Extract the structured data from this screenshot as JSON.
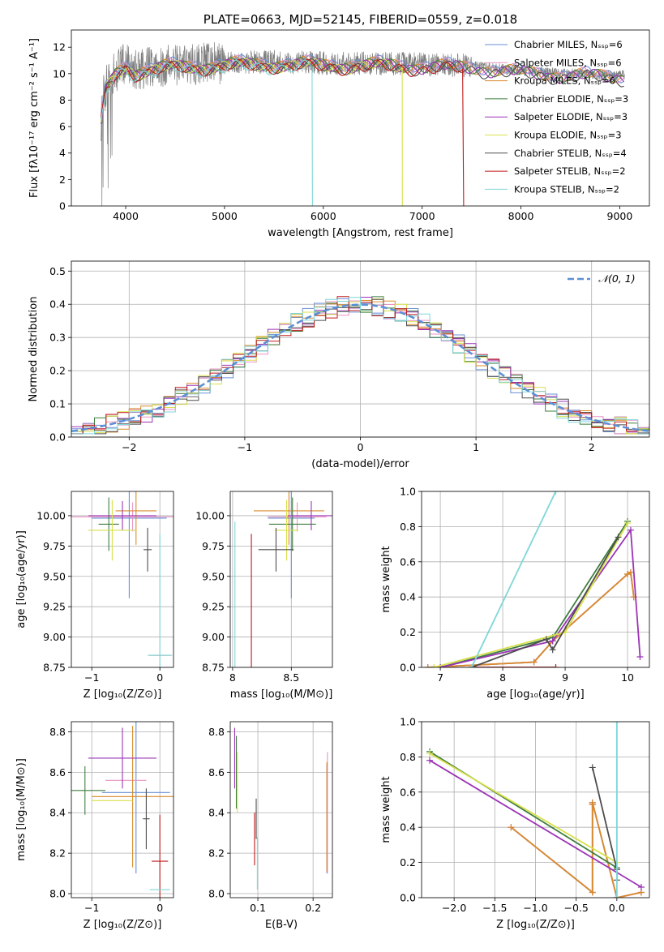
{
  "colors": {
    "Chabrier MILES": "#6a8fd6",
    "Salpeter MILES": "#e893c4",
    "Kroupa MILES": "#d98a2a",
    "Chabrier ELODIE": "#3f7d3f",
    "Salpeter ELODIE": "#9b34b5",
    "Kroupa ELODIE": "#d7e04a",
    "Chabrier STELIB": "#4d4d4d",
    "Salpeter STELIB": "#c01a1a",
    "Kroupa STELIB": "#7fd6d8",
    "data": "#808080",
    "gauss": "#5b8fd6"
  },
  "chart_data": [
    {
      "id": "spectrum",
      "type": "line",
      "title": "PLATE=0663, MJD=52145, FIBERID=0559, z=0.018",
      "xlabel": "wavelength [Angstrom, rest frame]",
      "ylabel": "Flux [fλ10⁻¹⁷ erg cm⁻² s⁻¹ A⁻¹]",
      "xlim": [
        3450,
        9300
      ],
      "ylim": [
        0,
        13.3
      ],
      "xticks": [
        4000,
        5000,
        6000,
        7000,
        8000,
        9000
      ],
      "yticks": [
        0,
        2,
        4,
        6,
        8,
        10,
        12
      ],
      "legend": [
        "Chabrier MILES, Nₛₛₚ=6",
        "Salpeter MILES, Nₛₛₚ=6",
        "Kroupa MILES, Nₛₛₚ=6",
        "Chabrier ELODIE, Nₛₛₚ=3",
        "Salpeter ELODIE, Nₛₛₚ=3",
        "Kroupa ELODIE, Nₛₛₚ=3",
        "Chabrier STELIB, Nₛₛₚ=4",
        "Salpeter STELIB, Nₛₛₚ=2",
        "Kroupa STELIB, Nₛₛₚ=2"
      ],
      "legend_loc": "upper-right",
      "data_range": [
        3750,
        9050
      ],
      "continuum": [
        [
          3750,
          6.5
        ],
        [
          3800,
          9.0
        ],
        [
          3900,
          10.2
        ],
        [
          4000,
          10.8
        ],
        [
          4100,
          10.3
        ],
        [
          4300,
          10.5
        ],
        [
          4500,
          10.7
        ],
        [
          5000,
          10.8
        ],
        [
          5500,
          10.9
        ],
        [
          6000,
          10.8
        ],
        [
          6500,
          10.8
        ],
        [
          7000,
          10.7
        ],
        [
          7500,
          10.6
        ],
        [
          8000,
          10.2
        ],
        [
          8500,
          10.0
        ],
        [
          9000,
          9.9
        ]
      ],
      "model_cutoffs": [
        {
          "series": "Kroupa STELIB",
          "x": 5890
        },
        {
          "series": "Kroupa ELODIE",
          "x": 6800
        },
        {
          "series": "Salpeter STELIB",
          "x": 7420
        }
      ]
    },
    {
      "id": "residuals",
      "type": "histogram",
      "xlabel": "(data-model)/error",
      "ylabel": "Normed distribution",
      "xlim": [
        -2.5,
        2.5
      ],
      "ylim": [
        0,
        0.53
      ],
      "xticks": [
        -2,
        -1,
        0,
        1,
        2
      ],
      "yticks": [
        0.0,
        0.1,
        0.2,
        0.3,
        0.4,
        0.5
      ],
      "legend": [
        "𝒩(0, 1)"
      ],
      "legend_loc": "upper-right",
      "bin_width": 0.1
    },
    {
      "id": "age-vs-Z",
      "type": "errorbar",
      "xlabel": "Z [log₁₀(Z/Z⊙)]",
      "ylabel": "age  [log₁₀(age/yr)]",
      "xlim": [
        -1.3,
        0.2
      ],
      "ylim": [
        8.75,
        10.2
      ],
      "xticks": [
        -1,
        0
      ],
      "yticks": [
        8.75,
        9.0,
        9.25,
        9.5,
        9.75,
        10.0
      ],
      "ytick_labels": [
        "8.75",
        "9.00",
        "9.25",
        "9.50",
        "9.75",
        "10.00"
      ],
      "points": [
        {
          "series": "Chabrier MILES",
          "x": -0.45,
          "xerr": 0.55,
          "y": 9.98,
          "yerr": 0.66
        },
        {
          "series": "Salpeter MILES",
          "x": -0.4,
          "xerr": 0.9,
          "y": 9.99,
          "yerr": 0.12
        },
        {
          "series": "Kroupa MILES",
          "x": -0.35,
          "xerr": 0.3,
          "y": 10.04,
          "yerr": 0.28
        },
        {
          "series": "Chabrier ELODIE",
          "x": -0.75,
          "xerr": 0.15,
          "y": 9.93,
          "yerr": 0.22
        },
        {
          "series": "Salpeter ELODIE",
          "x": -0.55,
          "xerr": 0.5,
          "y": 10.0,
          "yerr": 0.12
        },
        {
          "series": "Kroupa ELODIE",
          "x": -0.7,
          "xerr": 0.35,
          "y": 9.88,
          "yerr": 0.25
        },
        {
          "series": "Chabrier STELIB",
          "x": -0.18,
          "xerr": 0.06,
          "y": 9.72,
          "yerr": 0.18
        },
        {
          "series": "Salpeter STELIB",
          "x": 0.0,
          "xerr": 0.15,
          "y": 8.85,
          "yerr": 0.0
        },
        {
          "series": "Kroupa STELIB",
          "x": 0.0,
          "xerr": 0.18,
          "y": 8.85,
          "yerr": 1.0
        }
      ]
    },
    {
      "id": "age-vs-mass",
      "type": "errorbar",
      "xlabel": "mass [log₁₀(M/M⊙)]",
      "ylabel": "",
      "xlim": [
        7.98,
        8.85
      ],
      "ylim": [
        8.75,
        10.2
      ],
      "xticks": [
        8.0,
        8.5
      ],
      "yticks": [
        8.75,
        9.0,
        9.25,
        9.5,
        9.75,
        10.0
      ],
      "ytick_labels": [
        "8.75",
        "9.00",
        "9.25",
        "9.50",
        "9.75",
        "10.00"
      ],
      "points": [
        {
          "series": "Chabrier MILES",
          "x": 8.5,
          "xerr": 0.2,
          "y": 9.98,
          "yerr": 0.66
        },
        {
          "series": "Salpeter MILES",
          "x": 8.55,
          "xerr": 0.25,
          "y": 9.99,
          "yerr": 0.12
        },
        {
          "series": "Kroupa MILES",
          "x": 8.48,
          "xerr": 0.3,
          "y": 10.04,
          "yerr": 0.28
        },
        {
          "series": "Chabrier ELODIE",
          "x": 8.51,
          "xerr": 0.2,
          "y": 9.93,
          "yerr": 0.22
        },
        {
          "series": "Salpeter ELODIE",
          "x": 8.67,
          "xerr": 0.2,
          "y": 10.0,
          "yerr": 0.12
        },
        {
          "series": "Kroupa ELODIE",
          "x": 8.46,
          "xerr": 0.1,
          "y": 9.88,
          "yerr": 0.25
        },
        {
          "series": "Chabrier STELIB",
          "x": 8.37,
          "xerr": 0.15,
          "y": 9.72,
          "yerr": 0.18
        },
        {
          "series": "Salpeter STELIB",
          "x": 8.16,
          "xerr": 0.0,
          "y": 8.85,
          "yerr": 1.0
        },
        {
          "series": "Kroupa STELIB",
          "x": 8.02,
          "xerr": 0.0,
          "y": 8.85,
          "yerr": 1.1
        }
      ]
    },
    {
      "id": "weight-vs-age",
      "type": "line",
      "xlabel": "age  [log₁₀(age/yr)]",
      "ylabel": "mass weight",
      "xlim": [
        6.7,
        10.35
      ],
      "ylim": [
        0,
        1.0
      ],
      "xticks": [
        7,
        8,
        9,
        10
      ],
      "yticks": [
        0.0,
        0.2,
        0.4,
        0.6,
        0.8,
        1.0
      ],
      "series": [
        {
          "name": "Chabrier MILES",
          "x": [
            6.8,
            8.5,
            8.8,
            10.0,
            10.05,
            10.1
          ],
          "y": [
            0.0,
            0.03,
            0.15,
            0.53,
            0.54,
            0.4
          ]
        },
        {
          "name": "Salpeter MILES",
          "x": [
            6.8,
            8.5,
            8.8,
            10.0,
            10.05,
            10.1
          ],
          "y": [
            0.0,
            0.03,
            0.15,
            0.53,
            0.54,
            0.4
          ]
        },
        {
          "name": "Kroupa MILES",
          "x": [
            6.8,
            8.5,
            8.8,
            10.0,
            10.05,
            10.1
          ],
          "y": [
            0.0,
            0.03,
            0.15,
            0.53,
            0.54,
            0.4
          ]
        },
        {
          "name": "Chabrier ELODIE",
          "x": [
            7.0,
            8.8,
            10.0
          ],
          "y": [
            0.0,
            0.17,
            0.83
          ]
        },
        {
          "name": "Salpeter ELODIE",
          "x": [
            7.0,
            8.8,
            10.05,
            10.2
          ],
          "y": [
            0.0,
            0.15,
            0.78,
            0.06
          ]
        },
        {
          "name": "Kroupa ELODIE",
          "x": [
            6.9,
            9.0,
            10.0
          ],
          "y": [
            0.0,
            0.2,
            0.82
          ]
        },
        {
          "name": "Chabrier STELIB",
          "x": [
            7.5,
            8.7,
            8.8,
            9.85
          ],
          "y": [
            0.0,
            0.16,
            0.1,
            0.74
          ]
        },
        {
          "name": "Salpeter STELIB",
          "x": [
            7.5,
            8.85
          ],
          "y": [
            0.0,
            0.0
          ]
        },
        {
          "name": "Kroupa STELIB",
          "x": [
            7.5,
            8.85
          ],
          "y": [
            0.0,
            1.0
          ]
        }
      ]
    },
    {
      "id": "mass-vs-Z",
      "type": "errorbar",
      "xlabel": "Z [log₁₀(Z/Z⊙)]",
      "ylabel": "mass [log₁₀(M/M⊙)]",
      "xlim": [
        -1.3,
        0.2
      ],
      "ylim": [
        7.98,
        8.85
      ],
      "xticks": [
        -1,
        0
      ],
      "yticks": [
        8.0,
        8.2,
        8.4,
        8.6,
        8.8
      ],
      "ytick_labels": [
        "8.0",
        "8.2",
        "8.4",
        "8.6",
        "8.8"
      ],
      "points": [
        {
          "series": "Chabrier MILES",
          "x": -0.35,
          "xerr": 0.5,
          "y": 8.5,
          "yerr": 0.4
        },
        {
          "series": "Salpeter MILES",
          "x": -0.5,
          "xerr": 0.3,
          "y": 8.56,
          "yerr": 0.0
        },
        {
          "series": "Kroupa MILES",
          "x": -0.4,
          "xerr": 0.6,
          "y": 8.48,
          "yerr": 0.35
        },
        {
          "series": "Chabrier ELODIE",
          "x": -1.1,
          "xerr": 0.3,
          "y": 8.51,
          "yerr": 0.12
        },
        {
          "series": "Salpeter ELODIE",
          "x": -0.55,
          "xerr": 0.5,
          "y": 8.67,
          "yerr": 0.15
        },
        {
          "series": "Kroupa ELODIE",
          "x": -0.7,
          "xerr": 0.3,
          "y": 8.46,
          "yerr": 0.0
        },
        {
          "series": "Chabrier STELIB",
          "x": -0.2,
          "xerr": 0.05,
          "y": 8.37,
          "yerr": 0.15
        },
        {
          "series": "Salpeter STELIB",
          "x": 0.0,
          "xerr": 0.12,
          "y": 8.16,
          "yerr": 0.23
        },
        {
          "series": "Kroupa STELIB",
          "x": 0.0,
          "xerr": 0.15,
          "y": 8.02,
          "yerr": 0.0
        }
      ]
    },
    {
      "id": "mass-vs-EBV",
      "type": "errorbar",
      "xlabel": "E(B-V)",
      "ylabel": "",
      "xlim": [
        0.05,
        0.235
      ],
      "ylim": [
        7.98,
        8.85
      ],
      "xticks": [
        0.1,
        0.2
      ],
      "yticks": [
        8.0,
        8.2,
        8.4,
        8.6,
        8.8
      ],
      "ytick_labels": [
        "8.0",
        "8.2",
        "8.4",
        "8.6",
        "8.8"
      ],
      "points": [
        {
          "series": "Chabrier MILES",
          "x": 0.225,
          "xerr": 0.0,
          "y": 8.37,
          "yerr": 0.27
        },
        {
          "series": "Salpeter MILES",
          "x": 0.226,
          "xerr": 0.0,
          "y": 8.4,
          "yerr": 0.3
        },
        {
          "series": "Kroupa MILES",
          "x": 0.225,
          "xerr": 0.0,
          "y": 8.38,
          "yerr": 0.27
        },
        {
          "series": "Chabrier ELODIE",
          "x": 0.061,
          "xerr": 0.0,
          "y": 8.6,
          "yerr": 0.18
        },
        {
          "series": "Salpeter ELODIE",
          "x": 0.058,
          "xerr": 0.0,
          "y": 8.67,
          "yerr": 0.15
        },
        {
          "series": "Kroupa ELODIE",
          "x": 0.063,
          "xerr": 0.0,
          "y": 8.55,
          "yerr": 0.15
        },
        {
          "series": "Chabrier STELIB",
          "x": 0.097,
          "xerr": 0.0,
          "y": 8.37,
          "yerr": 0.1
        },
        {
          "series": "Salpeter STELIB",
          "x": 0.094,
          "xerr": 0.0,
          "y": 8.27,
          "yerr": 0.13
        },
        {
          "series": "Kroupa STELIB",
          "x": 0.099,
          "xerr": 0.0,
          "y": 8.15,
          "yerr": 0.13
        }
      ]
    },
    {
      "id": "weight-vs-Z",
      "type": "line",
      "xlabel": "Z [log₁₀(Z/Z⊙)]",
      "ylabel": "mass weight",
      "xlim": [
        -2.4,
        0.4
      ],
      "ylim": [
        0,
        1.0
      ],
      "xticks": [
        -2.0,
        -1.5,
        -1.0,
        -0.5,
        0.0
      ],
      "xtick_labels": [
        "−2.0",
        "−1.5",
        "−1.0",
        "−0.5",
        "0.0"
      ],
      "yticks": [
        0.0,
        0.2,
        0.4,
        0.6,
        0.8,
        1.0
      ],
      "series": [
        {
          "name": "Chabrier MILES",
          "x": [
            -1.3,
            -0.3,
            -0.3,
            -0.3,
            0.0,
            0.3
          ],
          "y": [
            0.4,
            0.03,
            0.53,
            0.54,
            0.0,
            0.03
          ]
        },
        {
          "name": "Salpeter MILES",
          "x": [
            -1.3,
            -0.3,
            -0.3,
            -0.3,
            0.0,
            0.3
          ],
          "y": [
            0.4,
            0.03,
            0.53,
            0.54,
            0.0,
            0.03
          ]
        },
        {
          "name": "Kroupa MILES",
          "x": [
            -1.3,
            -0.3,
            -0.3,
            -0.3,
            0.0,
            0.3
          ],
          "y": [
            0.4,
            0.03,
            0.53,
            0.54,
            0.0,
            0.03
          ]
        },
        {
          "name": "Chabrier ELODIE",
          "x": [
            -2.3,
            0.0
          ],
          "y": [
            0.83,
            0.17
          ]
        },
        {
          "name": "Salpeter ELODIE",
          "x": [
            -2.3,
            0.3
          ],
          "y": [
            0.78,
            0.06
          ]
        },
        {
          "name": "Kroupa ELODIE",
          "x": [
            -2.3,
            0.0
          ],
          "y": [
            0.82,
            0.2
          ]
        },
        {
          "name": "Chabrier STELIB",
          "x": [
            -0.3,
            0.0,
            0.0
          ],
          "y": [
            0.74,
            0.16,
            0.1
          ]
        },
        {
          "name": "Salpeter STELIB",
          "x": [
            0.0,
            0.0
          ],
          "y": [
            0.0,
            0.0
          ]
        },
        {
          "name": "Kroupa STELIB",
          "x": [
            0.0,
            0.0
          ],
          "y": [
            0.0,
            1.0
          ]
        }
      ]
    }
  ]
}
